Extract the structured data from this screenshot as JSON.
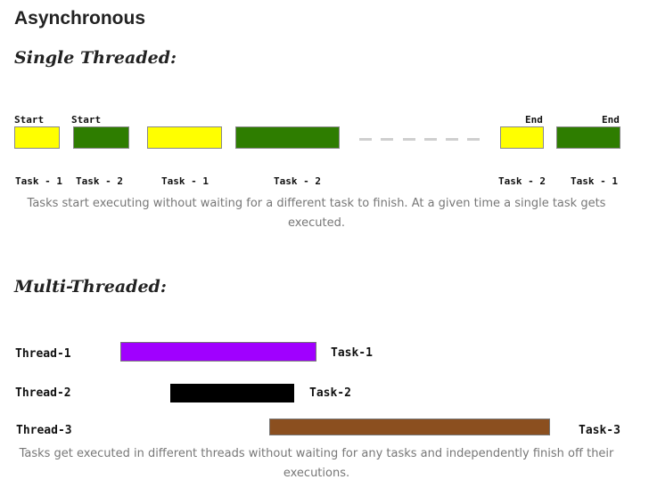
{
  "title": "Asynchronous",
  "single": {
    "heading": "Single Threaded:",
    "start_labels": [
      "Start",
      "Start"
    ],
    "end_labels": [
      "End",
      "End"
    ],
    "task_labels": [
      "Task - 1",
      "Task - 2",
      "Task - 1",
      "Task - 2",
      "Task - 2",
      "Task - 1"
    ],
    "colors": {
      "yellow": "#ffff00",
      "green": "#2e7d00",
      "dash": "#cfcfcf"
    },
    "caption": "Tasks start executing without waiting for a different task to finish. At a given time a single task gets executed."
  },
  "multi": {
    "heading": "Multi-Threaded:",
    "threads": [
      {
        "thread": "Thread-1",
        "task": "Task-1",
        "color": "#a000ff"
      },
      {
        "thread": "Thread-2",
        "task": "Task-2",
        "color": "#000000"
      },
      {
        "thread": "Thread-3",
        "task": "Task-3",
        "color": "#8b4f1f"
      }
    ],
    "caption": "Tasks get executed in different threads without waiting for any tasks and independently finish off their executions."
  }
}
